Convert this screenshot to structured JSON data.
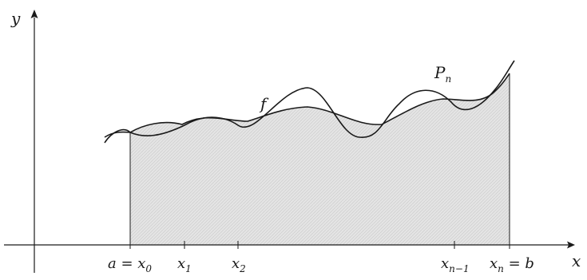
{
  "figure": {
    "axis_labels": {
      "x": "x",
      "y": "y"
    },
    "curve_labels": {
      "f": "f",
      "p_main": "P",
      "p_sub": "n"
    },
    "ticks": [
      {
        "main": "a = x",
        "sub": "0"
      },
      {
        "main": "x",
        "sub": "1"
      },
      {
        "main": "x",
        "sub": "2"
      },
      {
        "main": "x",
        "sub": "n−1"
      },
      {
        "main": "x",
        "sub": "n",
        "suffix": " = b"
      }
    ],
    "colors": {
      "ink": "#1a1a1a",
      "shade": "#e4e4e4",
      "hatch": "#c4c4c4"
    }
  }
}
